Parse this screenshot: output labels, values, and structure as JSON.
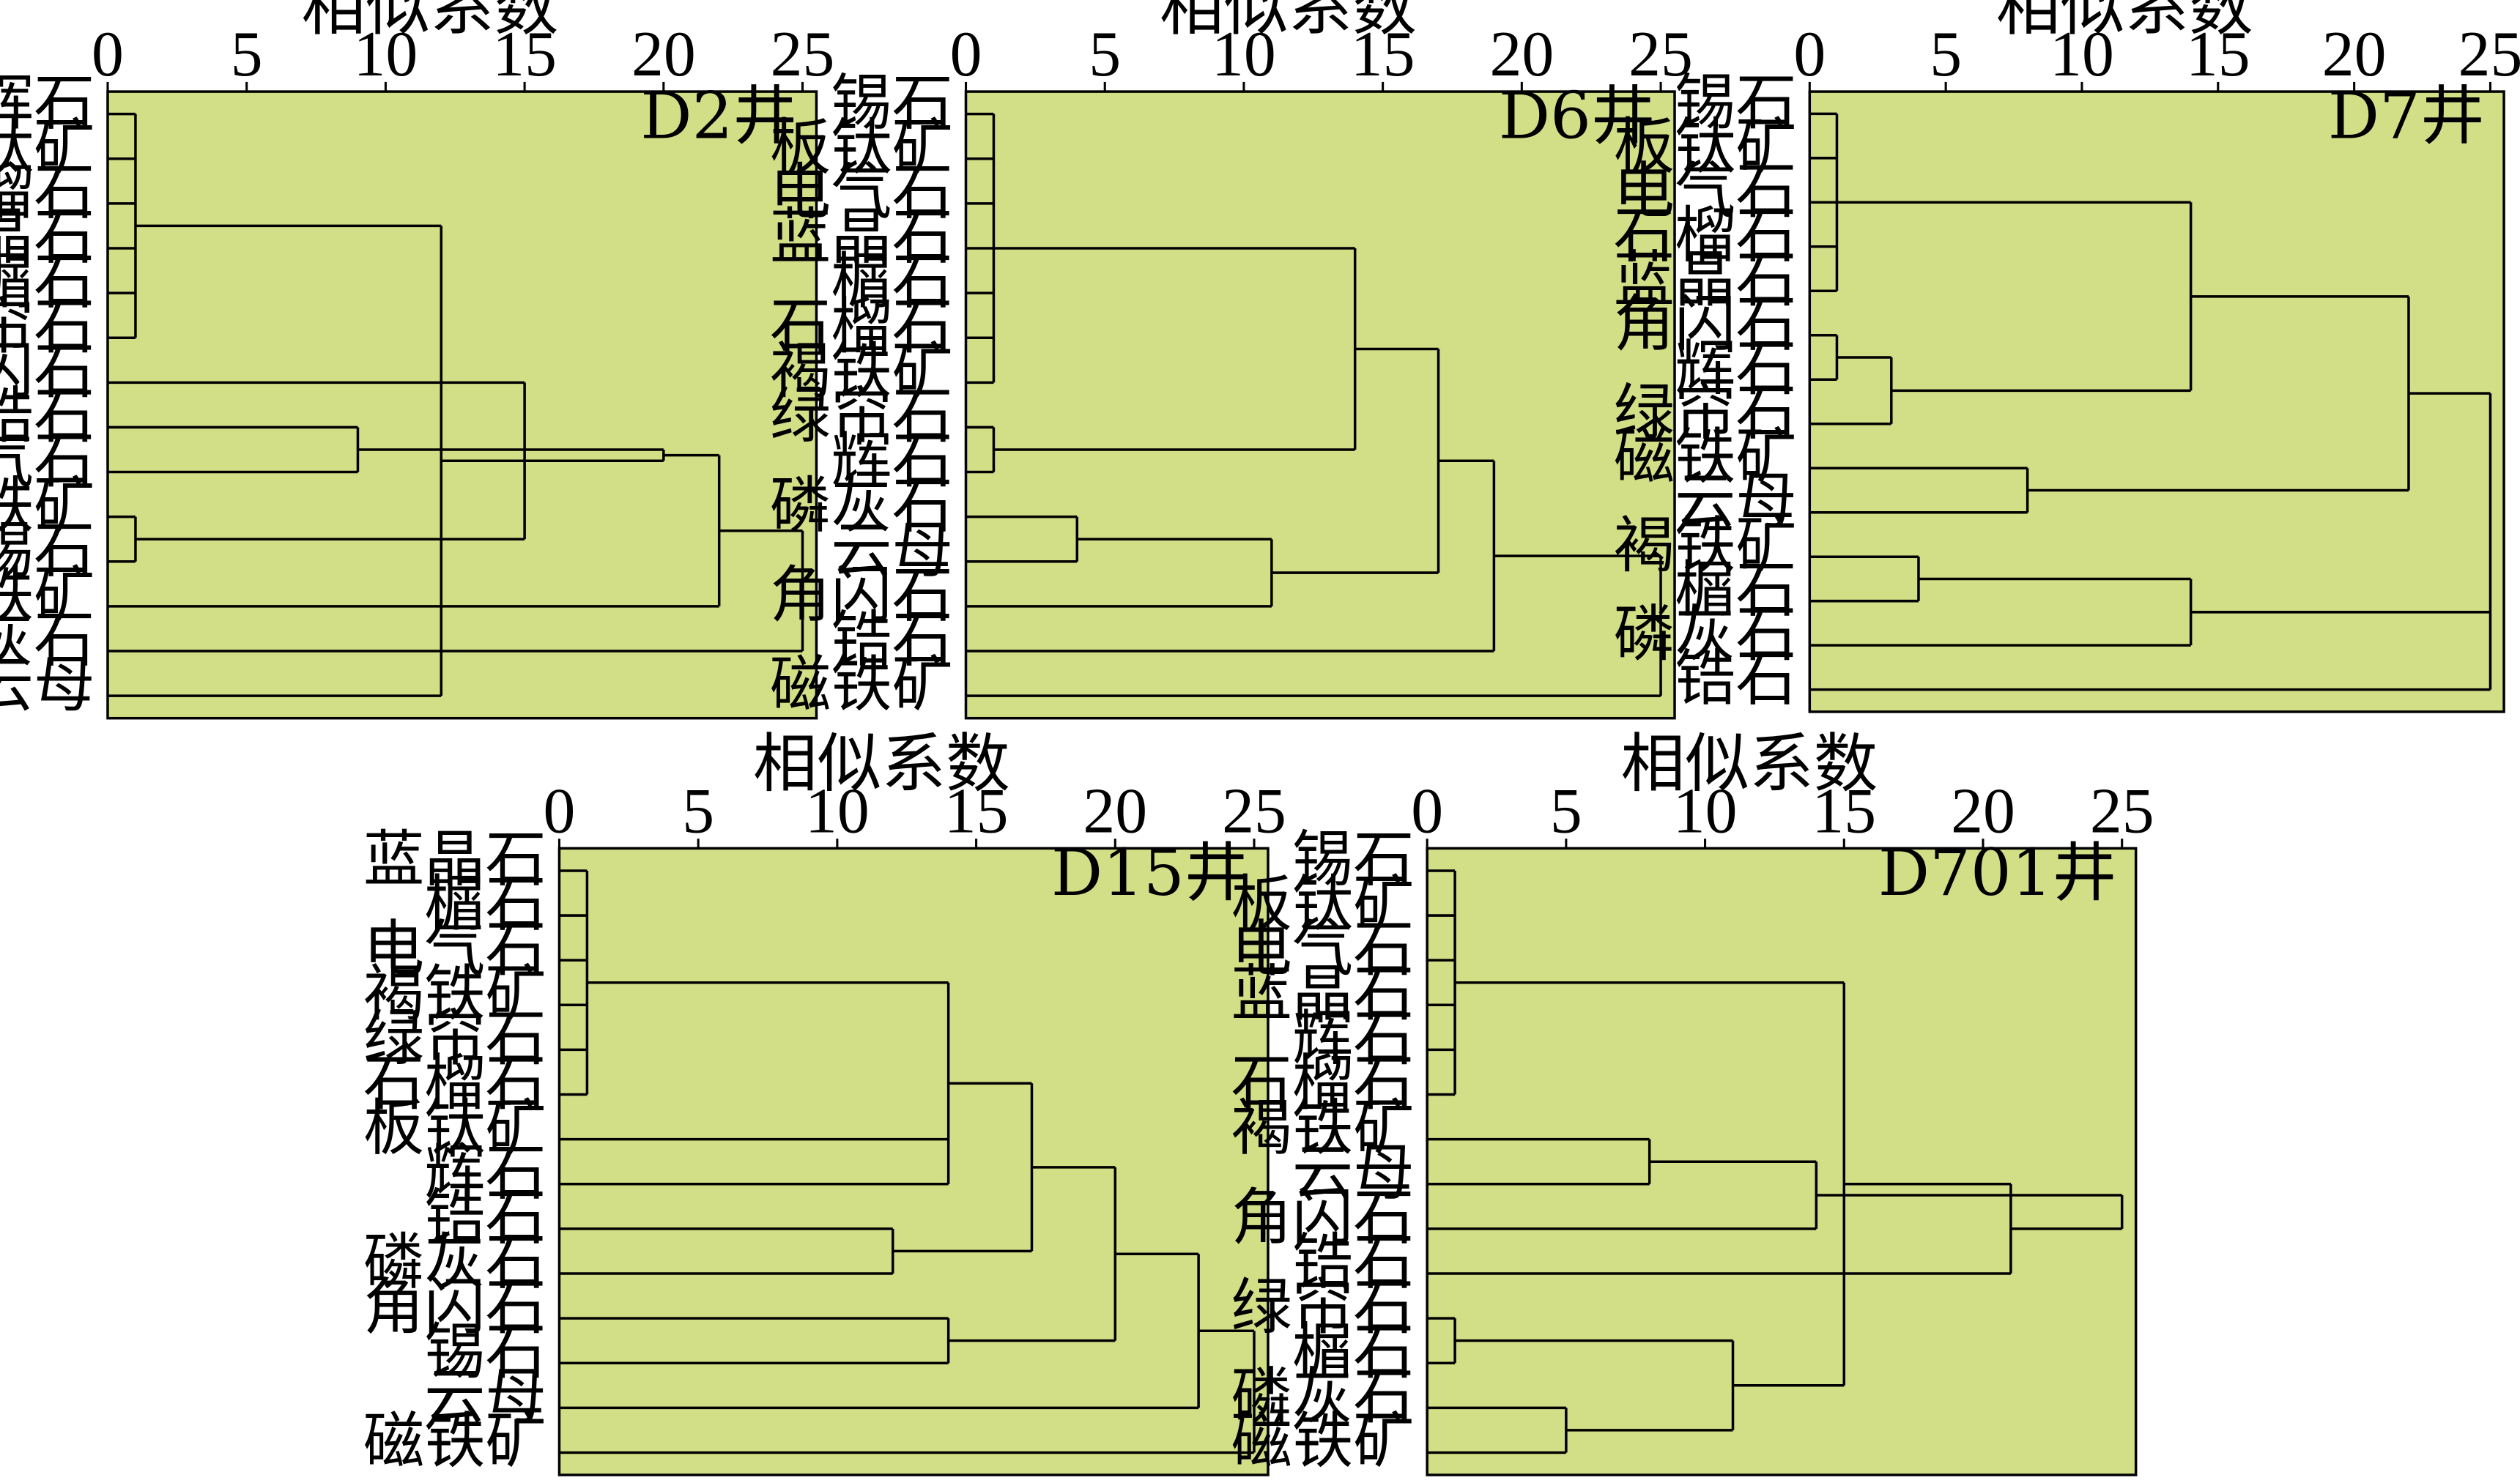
{
  "chart_data": [
    {
      "type": "dendrogram",
      "title": "D2井",
      "xlabel": "相似系数",
      "xlim": [
        0,
        25.5
      ],
      "xticks": [
        0,
        5,
        10,
        15,
        20,
        25
      ],
      "leaves": [
        "辉石",
        "板钛矿",
        "石榴石",
        "蓝晶石",
        "榍石",
        "绿帘石",
        "角闪石",
        "锆石",
        "电气石",
        "褐铁矿",
        "锡石",
        "磁铁矿",
        "磷灰石",
        "云母"
      ],
      "merges": [
        {
          "items": [
            0,
            1,
            2,
            3,
            4,
            5
          ],
          "distance": 1
        },
        {
          "items": [
            9,
            10
          ],
          "distance": 1
        },
        {
          "items": [
            7,
            8
          ],
          "distance": 9
        },
        {
          "items": [
            13,
            14
          ],
          "distance": 12
        },
        {
          "items": [
            6,
            15
          ],
          "distance": 15
        },
        {
          "items": [
            18,
            17
          ],
          "distance": 17
        },
        {
          "items": [
            19,
            16
          ],
          "distance": 20
        },
        {
          "items": [
            20,
            11
          ],
          "distance": 22
        },
        {
          "items": [
            21,
            12
          ],
          "distance": 25
        }
      ]
    },
    {
      "type": "dendrogram",
      "title": "D6井",
      "xlabel": "相似系数",
      "xlim": [
        0,
        25.5
      ],
      "xticks": [
        0,
        5,
        10,
        15,
        20,
        25
      ],
      "leaves": [
        "锡石",
        "板钛矿",
        "电气石",
        "蓝晶石",
        "榍石",
        "石榴石",
        "褐铁矿",
        "绿帘石",
        "辉石",
        "磷灰石",
        "云母",
        "角闪石",
        "锆石",
        "磁铁矿"
      ],
      "merges": [
        {
          "items": [
            0,
            1,
            2,
            3,
            4,
            5,
            6
          ],
          "distance": 1
        },
        {
          "items": [
            7,
            8
          ],
          "distance": 1
        },
        {
          "items": [
            9,
            10
          ],
          "distance": 4
        },
        {
          "items": [
            16,
            11
          ],
          "distance": 11
        },
        {
          "items": [
            14,
            15
          ],
          "distance": 14
        },
        {
          "items": [
            18,
            17
          ],
          "distance": 17
        },
        {
          "items": [
            19,
            12
          ],
          "distance": 19
        },
        {
          "items": [
            20,
            13
          ],
          "distance": 25
        }
      ]
    },
    {
      "type": "dendrogram",
      "title": "D7井",
      "xlabel": "相似系数",
      "xlim": [
        0,
        25.5
      ],
      "xticks": [
        0,
        5,
        10,
        15,
        20,
        25
      ],
      "leaves": [
        "锡石",
        "板钛矿",
        "电气石",
        "石榴石",
        "蓝晶石",
        "角闪石",
        "辉石",
        "绿帘石",
        "磁铁矿",
        "云母",
        "褐铁矿",
        "榍石",
        "磷灰石",
        "锆石"
      ],
      "merges": [
        {
          "items": [
            0,
            1,
            2,
            3,
            4
          ],
          "distance": 1
        },
        {
          "items": [
            5,
            6
          ],
          "distance": 1
        },
        {
          "items": [
            15,
            7
          ],
          "distance": 3
        },
        {
          "items": [
            10,
            11
          ],
          "distance": 4
        },
        {
          "items": [
            8,
            9
          ],
          "distance": 8
        },
        {
          "items": [
            14,
            16
          ],
          "distance": 14
        },
        {
          "items": [
            17,
            12
          ],
          "distance": 14
        },
        {
          "items": [
            19,
            18
          ],
          "distance": 22
        },
        {
          "items": [
            21,
            20,
            13
          ],
          "distance": 25
        }
      ]
    },
    {
      "type": "dendrogram",
      "title": "D15井",
      "xlabel": "相似系数",
      "xlim": [
        0,
        25.5
      ],
      "xticks": [
        0,
        5,
        10,
        15,
        20,
        25
      ],
      "leaves": [
        "蓝晶石",
        "榍石",
        "电气石",
        "褐铁矿",
        "绿帘石",
        "石榴石",
        "板钛矿",
        "辉石",
        "锆石",
        "磷灰石",
        "角闪石",
        "锡石",
        "云母",
        "磁铁矿"
      ],
      "merges": [
        {
          "items": [
            0,
            1,
            2,
            3,
            4,
            5
          ],
          "distance": 1
        },
        {
          "items": [
            8,
            9
          ],
          "distance": 12
        },
        {
          "items": [
            10,
            11
          ],
          "distance": 14
        },
        {
          "items": [
            14,
            6,
            7
          ],
          "distance": 14
        },
        {
          "items": [
            17,
            15
          ],
          "distance": 17
        },
        {
          "items": [
            18,
            16
          ],
          "distance": 20
        },
        {
          "items": [
            19,
            12
          ],
          "distance": 23
        },
        {
          "items": [
            20,
            13
          ],
          "distance": 25
        }
      ]
    },
    {
      "type": "dendrogram",
      "title": "D701井",
      "xlabel": "相似系数",
      "xlim": [
        0,
        25.5
      ],
      "xticks": [
        0,
        5,
        10,
        15,
        20,
        25
      ],
      "leaves": [
        "锡石",
        "板钛矿",
        "电气石",
        "蓝晶石",
        "辉石",
        "石榴石",
        "褐铁矿",
        "云母",
        "角闪石",
        "锆石",
        "绿帘石",
        "榍石",
        "磷灰石",
        "磁铁矿"
      ],
      "merges": [
        {
          "items": [
            0,
            1,
            2,
            3,
            4,
            5
          ],
          "distance": 1
        },
        {
          "items": [
            10,
            11
          ],
          "distance": 1
        },
        {
          "items": [
            12,
            13
          ],
          "distance": 5
        },
        {
          "items": [
            6,
            7
          ],
          "distance": 8
        },
        {
          "items": [
            16,
            15
          ],
          "distance": 11
        },
        {
          "items": [
            17,
            8
          ],
          "distance": 14
        },
        {
          "items": [
            14,
            18
          ],
          "distance": 15
        },
        {
          "items": [
            20,
            9
          ],
          "distance": 21
        },
        {
          "items": [
            21,
            19
          ],
          "distance": 25
        }
      ]
    }
  ],
  "style": {
    "plot_background": "#d3df87",
    "line_color": "#000000"
  }
}
